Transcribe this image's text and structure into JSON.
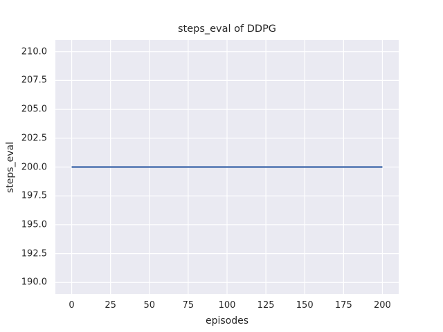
{
  "chart_data": {
    "type": "line",
    "title": "steps_eval of DDPG",
    "xlabel": "episodes",
    "ylabel": "steps_eval",
    "x_ticks": [
      {
        "v": 0,
        "label": "0"
      },
      {
        "v": 25,
        "label": "25"
      },
      {
        "v": 50,
        "label": "50"
      },
      {
        "v": 75,
        "label": "75"
      },
      {
        "v": 100,
        "label": "100"
      },
      {
        "v": 125,
        "label": "125"
      },
      {
        "v": 150,
        "label": "150"
      },
      {
        "v": 175,
        "label": "175"
      },
      {
        "v": 200,
        "label": "200"
      }
    ],
    "y_ticks": [
      {
        "v": 210.0,
        "label": "210.0"
      },
      {
        "v": 207.5,
        "label": "207.5"
      },
      {
        "v": 205.0,
        "label": "205.0"
      },
      {
        "v": 202.5,
        "label": "202.5"
      },
      {
        "v": 200.0,
        "label": "200.0"
      },
      {
        "v": 197.5,
        "label": "197.5"
      },
      {
        "v": 195.0,
        "label": "195.0"
      },
      {
        "v": 192.5,
        "label": "192.5"
      },
      {
        "v": 190.0,
        "label": "190.0"
      }
    ],
    "xlim": [
      -10.5,
      210.5
    ],
    "ylim": [
      189,
      211
    ],
    "grid": true,
    "legend": "none",
    "plot_bg_color": "#EAEAF2",
    "grid_color": "#FFFFFF",
    "text_color": "#262626",
    "figure_bg_color": "#FFFFFF",
    "series": [
      {
        "name": "DDPG",
        "color": "#4C72B0",
        "constant_value": 200,
        "points": [
          [
            0,
            200
          ],
          [
            200,
            200
          ]
        ]
      }
    ]
  }
}
